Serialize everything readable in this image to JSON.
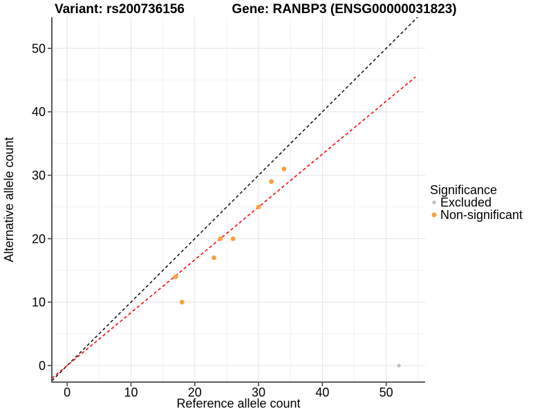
{
  "titles": {
    "left": "Variant: rs200736156",
    "right": "Gene: RANBP3 (ENSG00000031823)"
  },
  "chart_data": {
    "type": "scatter",
    "xlabel": "Reference allele count",
    "ylabel": "Alternative allele count",
    "xlim": [
      -2.4,
      56.1
    ],
    "ylim": [
      -2.6,
      54.9
    ],
    "x_ticks": [
      0,
      10,
      20,
      30,
      40,
      50
    ],
    "y_ticks": [
      0,
      10,
      20,
      30,
      40,
      50
    ],
    "x_minor": [
      5,
      15,
      25,
      35,
      45,
      55
    ],
    "y_minor": [
      5,
      15,
      25,
      35,
      45
    ],
    "grid": "major+minor",
    "legend": {
      "title": "Significance",
      "position": "right",
      "items": [
        {
          "label": "Excluded",
          "color": "#BEBEBE",
          "size": 2.6
        },
        {
          "label": "Non-significant",
          "color": "#F9A03C",
          "size": 3.4
        }
      ]
    },
    "series": [
      {
        "name": "Excluded",
        "color": "#BEBEBE",
        "size": 2.6,
        "points": [
          [
            52,
            0
          ]
        ]
      },
      {
        "name": "Non-significant",
        "color": "#F9A03C",
        "size": 3.4,
        "points": [
          [
            17,
            14
          ],
          [
            18,
            10
          ],
          [
            23,
            17
          ],
          [
            24,
            20
          ],
          [
            26,
            20
          ],
          [
            30,
            25
          ],
          [
            32,
            29
          ],
          [
            34,
            31
          ]
        ]
      }
    ],
    "lines": [
      {
        "name": "identity",
        "color": "#161616",
        "slope": 1.0,
        "intercept": 0,
        "dash": "4.5,3.5"
      },
      {
        "name": "expected-ratio",
        "color": "#FF0000",
        "slope": 0.8333,
        "intercept": 0,
        "dash": "4.5,3.5",
        "x_end": 54.6
      }
    ],
    "colors": {
      "grid_major": "#E3E3E3",
      "grid_minor": "#F1F1F1",
      "axis_line": "#474747",
      "tick_mark": "#474747"
    }
  }
}
